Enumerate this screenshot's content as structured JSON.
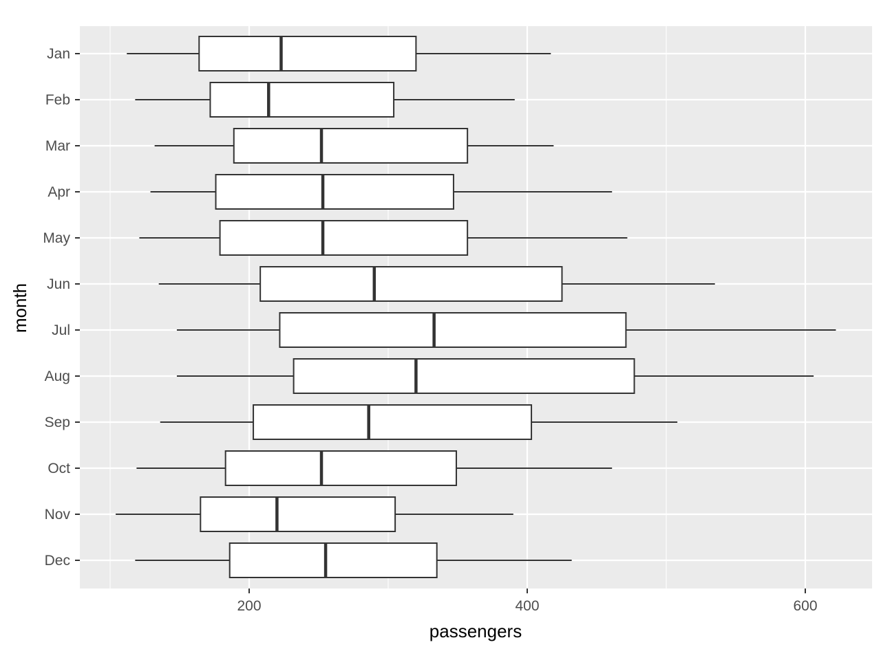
{
  "chart_data": {
    "type": "boxplot",
    "orientation": "horizontal",
    "title": "",
    "xlabel": "passengers",
    "ylabel": "month",
    "xlim": [
      78,
      626
    ],
    "x_ticks": [
      200,
      400,
      600
    ],
    "x_tick_labels": [
      "200",
      "400",
      "600"
    ],
    "grid": true,
    "categories": [
      "Jan",
      "Feb",
      "Mar",
      "Apr",
      "May",
      "Jun",
      "Jul",
      "Aug",
      "Sep",
      "Oct",
      "Nov",
      "Dec"
    ],
    "series": [
      {
        "category": "Jan",
        "whisker_low": 112,
        "q1": 164,
        "median": 223,
        "q3": 320,
        "whisker_high": 417
      },
      {
        "category": "Feb",
        "whisker_low": 118,
        "q1": 172,
        "median": 214,
        "q3": 304,
        "whisker_high": 391
      },
      {
        "category": "Mar",
        "whisker_low": 132,
        "q1": 189,
        "median": 252,
        "q3": 357,
        "whisker_high": 419
      },
      {
        "category": "Apr",
        "whisker_low": 129,
        "q1": 176,
        "median": 253,
        "q3": 347,
        "whisker_high": 461
      },
      {
        "category": "May",
        "whisker_low": 121,
        "q1": 179,
        "median": 253,
        "q3": 357,
        "whisker_high": 472
      },
      {
        "category": "Jun",
        "whisker_low": 135,
        "q1": 208,
        "median": 290,
        "q3": 425,
        "whisker_high": 535
      },
      {
        "category": "Jul",
        "whisker_low": 148,
        "q1": 222,
        "median": 333,
        "q3": 471,
        "whisker_high": 622
      },
      {
        "category": "Aug",
        "whisker_low": 148,
        "q1": 232,
        "median": 320,
        "q3": 477,
        "whisker_high": 606
      },
      {
        "category": "Sep",
        "whisker_low": 136,
        "q1": 203,
        "median": 286,
        "q3": 403,
        "whisker_high": 508
      },
      {
        "category": "Oct",
        "whisker_low": 119,
        "q1": 183,
        "median": 252,
        "q3": 349,
        "whisker_high": 461
      },
      {
        "category": "Nov",
        "whisker_low": 104,
        "q1": 165,
        "median": 220,
        "q3": 305,
        "whisker_high": 390
      },
      {
        "category": "Dec",
        "whisker_low": 118,
        "q1": 186,
        "median": 255,
        "q3": 335,
        "whisker_high": 432
      }
    ],
    "colors": {
      "panel_background": "#ebebeb",
      "grid_line": "#ffffff",
      "box_fill": "#ffffff",
      "box_stroke": "#333333",
      "tick_label": "#4d4d4d",
      "axis_title": "#000000"
    }
  }
}
